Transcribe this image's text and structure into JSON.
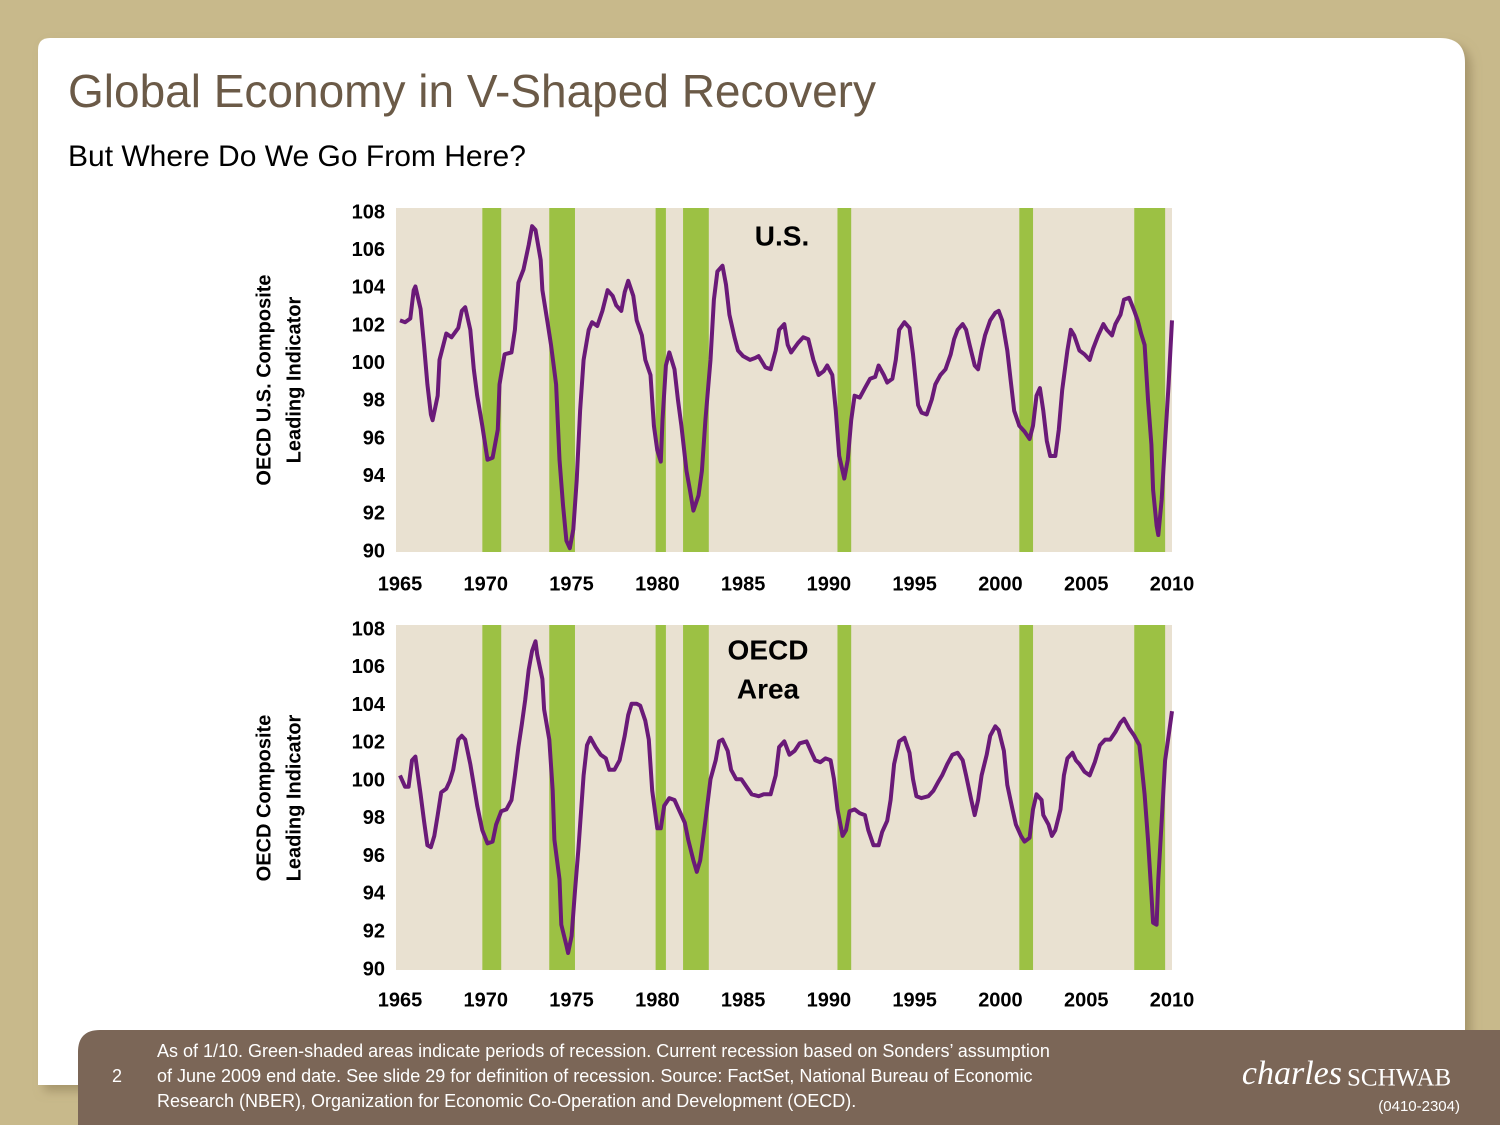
{
  "title": "Global Economy in V-Shaped Recovery",
  "subtitle": "But Where Do We Go From Here?",
  "chart_data": [
    {
      "type": "line",
      "annotation": [
        "U.S."
      ],
      "ylabel": [
        "OECD U.S. Composite",
        "Leading Indicator"
      ],
      "color": "#6a1a78",
      "recession_color": "#9cc144",
      "background": "#e9e1d1",
      "xlim": [
        1965,
        2010
      ],
      "xticks": [
        1965,
        1970,
        1975,
        1980,
        1985,
        1990,
        1995,
        2000,
        2005,
        2010
      ],
      "ylim": [
        90,
        108
      ],
      "yticks": [
        90,
        92,
        94,
        96,
        98,
        100,
        102,
        104,
        106,
        108
      ],
      "recessions": [
        [
          1969.8,
          1970.9
        ],
        [
          1973.7,
          1975.2
        ],
        [
          1979.9,
          1980.5
        ],
        [
          1981.5,
          1983.0
        ],
        [
          1990.5,
          1991.3
        ],
        [
          2001.1,
          2001.9
        ],
        [
          2007.8,
          2009.6
        ]
      ],
      "x": [
        1965.0,
        1965.3,
        1965.6,
        1965.8,
        1965.9,
        1966.2,
        1966.4,
        1966.6,
        1966.8,
        1966.9,
        1967.2,
        1967.3,
        1967.7,
        1968.0,
        1968.4,
        1968.6,
        1968.8,
        1969.1,
        1969.3,
        1969.5,
        1969.8,
        1970.1,
        1970.4,
        1970.7,
        1970.8,
        1971.1,
        1971.5,
        1971.7,
        1971.9,
        1972.2,
        1972.5,
        1972.7,
        1972.9,
        1973.2,
        1973.3,
        1973.6,
        1973.8,
        1974.1,
        1974.3,
        1974.5,
        1974.7,
        1974.9,
        1975.1,
        1975.3,
        1975.5,
        1975.7,
        1976.0,
        1976.2,
        1976.5,
        1976.8,
        1977.1,
        1977.4,
        1977.6,
        1977.9,
        1978.1,
        1978.3,
        1978.6,
        1978.8,
        1979.1,
        1979.3,
        1979.6,
        1979.8,
        1980.0,
        1980.2,
        1980.3,
        1980.5,
        1980.7,
        1981.0,
        1981.2,
        1981.4,
        1981.7,
        1981.9,
        1982.1,
        1982.4,
        1982.6,
        1982.8,
        1983.1,
        1983.3,
        1983.5,
        1983.8,
        1984.0,
        1984.2,
        1984.5,
        1984.7,
        1985.0,
        1985.4,
        1985.7,
        1985.9,
        1986.3,
        1986.6,
        1986.9,
        1987.1,
        1987.4,
        1987.6,
        1987.8,
        1988.2,
        1988.5,
        1988.8,
        1989.1,
        1989.4,
        1989.7,
        1989.9,
        1990.2,
        1990.4,
        1990.6,
        1990.9,
        1991.1,
        1991.3,
        1991.5,
        1991.8,
        1992.1,
        1992.4,
        1992.7,
        1992.9,
        1993.2,
        1993.4,
        1993.7,
        1993.9,
        1994.1,
        1994.4,
        1994.7,
        1994.9,
        1995.2,
        1995.4,
        1995.7,
        1996.0,
        1996.2,
        1996.5,
        1996.8,
        1997.1,
        1997.3,
        1997.5,
        1997.8,
        1998.0,
        1998.2,
        1998.5,
        1998.7,
        1998.9,
        1999.1,
        1999.4,
        1999.7,
        1999.9,
        2000.1,
        2000.4,
        2000.6,
        2000.8,
        2001.1,
        2001.4,
        2001.7,
        2001.9,
        2002.1,
        2002.3,
        2002.5,
        2002.7,
        2002.9,
        2003.2,
        2003.4,
        2003.6,
        2003.9,
        2004.1,
        2004.3,
        2004.6,
        2004.9,
        2005.2,
        2005.4,
        2005.7,
        2006.0,
        2006.2,
        2006.5,
        2006.7,
        2007.0,
        2007.2,
        2007.5,
        2007.8,
        2008.0,
        2008.2,
        2008.4,
        2008.6,
        2008.8,
        2008.9,
        2009.1,
        2009.2,
        2009.4,
        2009.6,
        2009.8,
        2010.0
      ],
      "values": [
        102.3,
        102.2,
        102.4,
        103.9,
        104.1,
        102.9,
        101.0,
        98.9,
        97.3,
        97.0,
        98.3,
        100.2,
        101.6,
        101.4,
        101.9,
        102.8,
        103.0,
        101.8,
        99.7,
        98.3,
        96.7,
        94.9,
        95.0,
        96.5,
        98.9,
        100.5,
        100.6,
        101.8,
        104.3,
        105.0,
        106.3,
        107.3,
        107.1,
        105.5,
        103.9,
        102.2,
        101.0,
        98.9,
        94.9,
        92.5,
        90.6,
        90.2,
        91.2,
        93.8,
        97.5,
        100.2,
        101.8,
        102.2,
        102.0,
        102.8,
        103.9,
        103.6,
        103.1,
        102.8,
        103.8,
        104.4,
        103.6,
        102.3,
        101.5,
        100.2,
        99.4,
        96.7,
        95.4,
        94.8,
        97.0,
        99.9,
        100.6,
        99.7,
        98.1,
        96.7,
        94.3,
        93.3,
        92.2,
        93.0,
        94.3,
        97.0,
        100.2,
        103.4,
        104.9,
        105.2,
        104.2,
        102.6,
        101.4,
        100.7,
        100.4,
        100.2,
        100.3,
        100.4,
        99.8,
        99.7,
        100.7,
        101.8,
        102.1,
        101.0,
        100.6,
        101.1,
        101.4,
        101.3,
        100.2,
        99.4,
        99.6,
        99.9,
        99.4,
        97.5,
        95.1,
        93.9,
        94.9,
        97.0,
        98.3,
        98.2,
        98.7,
        99.2,
        99.3,
        99.9,
        99.4,
        99.0,
        99.2,
        100.2,
        101.8,
        102.2,
        101.9,
        100.5,
        97.8,
        97.4,
        97.3,
        98.1,
        98.9,
        99.4,
        99.7,
        100.5,
        101.3,
        101.8,
        102.1,
        101.8,
        101.0,
        99.9,
        99.7,
        100.7,
        101.5,
        102.3,
        102.7,
        102.8,
        102.3,
        100.7,
        99.1,
        97.5,
        96.7,
        96.4,
        96.0,
        96.7,
        98.3,
        98.7,
        97.5,
        95.9,
        95.1,
        95.1,
        96.5,
        98.6,
        100.7,
        101.8,
        101.5,
        100.7,
        100.5,
        100.2,
        100.8,
        101.5,
        102.1,
        101.8,
        101.5,
        102.1,
        102.6,
        103.4,
        103.5,
        102.8,
        102.3,
        101.6,
        101.0,
        98.1,
        95.7,
        93.3,
        91.4,
        90.9,
        92.8,
        95.9,
        98.9,
        102.3
      ]
    },
    {
      "type": "line",
      "annotation": [
        "OECD",
        "Area"
      ],
      "ylabel": [
        "OECD Composite",
        "Leading Indicator"
      ],
      "color": "#6a1a78",
      "recession_color": "#9cc144",
      "background": "#e9e1d1",
      "xlim": [
        1965,
        2010
      ],
      "xticks": [
        1965,
        1970,
        1975,
        1980,
        1985,
        1990,
        1995,
        2000,
        2005,
        2010
      ],
      "ylim": [
        90,
        108
      ],
      "yticks": [
        90,
        92,
        94,
        96,
        98,
        100,
        102,
        104,
        106,
        108
      ],
      "recessions": [
        [
          1969.8,
          1970.9
        ],
        [
          1973.7,
          1975.2
        ],
        [
          1979.9,
          1980.5
        ],
        [
          1981.5,
          1983.0
        ],
        [
          1990.5,
          1991.3
        ],
        [
          2001.1,
          2001.9
        ],
        [
          2007.8,
          2009.6
        ]
      ],
      "x": [
        1965.0,
        1965.1,
        1965.3,
        1965.5,
        1965.7,
        1965.9,
        1966.0,
        1966.2,
        1966.4,
        1966.6,
        1966.8,
        1967.0,
        1967.2,
        1967.4,
        1967.7,
        1967.9,
        1968.1,
        1968.4,
        1968.6,
        1968.8,
        1969.1,
        1969.3,
        1969.5,
        1969.8,
        1970.1,
        1970.4,
        1970.6,
        1970.9,
        1971.2,
        1971.5,
        1971.7,
        1971.9,
        1972.1,
        1972.3,
        1972.5,
        1972.7,
        1972.9,
        1973.0,
        1973.3,
        1973.4,
        1973.7,
        1973.9,
        1974.0,
        1974.3,
        1974.4,
        1974.7,
        1974.8,
        1975.0,
        1975.2,
        1975.4,
        1975.7,
        1975.9,
        1976.1,
        1976.4,
        1976.7,
        1977.0,
        1977.2,
        1977.5,
        1977.8,
        1978.1,
        1978.3,
        1978.5,
        1978.8,
        1979.0,
        1979.3,
        1979.5,
        1979.7,
        1980.0,
        1980.2,
        1980.4,
        1980.7,
        1981.0,
        1981.3,
        1981.6,
        1981.8,
        1982.1,
        1982.3,
        1982.5,
        1982.8,
        1983.1,
        1983.4,
        1983.6,
        1983.8,
        1984.1,
        1984.3,
        1984.6,
        1984.9,
        1985.2,
        1985.5,
        1985.9,
        1986.2,
        1986.6,
        1986.9,
        1987.1,
        1987.4,
        1987.7,
        1988.0,
        1988.3,
        1988.7,
        1989.0,
        1989.2,
        1989.5,
        1989.8,
        1990.1,
        1990.3,
        1990.5,
        1990.8,
        1991.0,
        1991.2,
        1991.5,
        1991.8,
        1992.1,
        1992.3,
        1992.6,
        1992.9,
        1993.1,
        1993.4,
        1993.6,
        1993.8,
        1994.1,
        1994.4,
        1994.7,
        1994.9,
        1995.1,
        1995.4,
        1995.8,
        1996.1,
        1996.4,
        1996.6,
        1996.9,
        1997.2,
        1997.5,
        1997.8,
        1998.0,
        1998.3,
        1998.5,
        1998.7,
        1998.9,
        1999.2,
        1999.4,
        1999.7,
        1999.9,
        2000.2,
        2000.4,
        2000.7,
        2000.9,
        2001.2,
        2001.4,
        2001.7,
        2001.9,
        2002.1,
        2002.4,
        2002.5,
        2002.8,
        2003.0,
        2003.2,
        2003.5,
        2003.7,
        2003.9,
        2004.2,
        2004.4,
        2004.6,
        2004.9,
        2005.2,
        2005.5,
        2005.8,
        2006.1,
        2006.4,
        2006.7,
        2007.0,
        2007.2,
        2007.5,
        2007.8,
        2008.1,
        2008.2,
        2008.4,
        2008.6,
        2008.8,
        2008.9,
        2009.1,
        2009.2,
        2009.4,
        2009.6,
        2009.8,
        2010.0
      ],
      "values": [
        100.3,
        100.1,
        99.7,
        99.7,
        101.1,
        101.3,
        100.6,
        99.3,
        97.9,
        96.6,
        96.5,
        97.1,
        98.2,
        99.4,
        99.6,
        100.0,
        100.6,
        102.2,
        102.4,
        102.2,
        100.9,
        99.8,
        98.7,
        97.4,
        96.7,
        96.8,
        97.7,
        98.4,
        98.5,
        99.0,
        100.3,
        101.8,
        103.0,
        104.3,
        105.9,
        106.9,
        107.4,
        106.7,
        105.4,
        103.8,
        102.2,
        99.5,
        96.9,
        94.8,
        92.4,
        91.3,
        90.9,
        91.8,
        94.2,
        96.4,
        100.3,
        101.9,
        102.3,
        101.8,
        101.4,
        101.2,
        100.6,
        100.6,
        101.1,
        102.4,
        103.5,
        104.1,
        104.1,
        104.0,
        103.2,
        102.2,
        99.5,
        97.5,
        97.5,
        98.7,
        99.1,
        99.0,
        98.4,
        97.8,
        96.9,
        95.8,
        95.2,
        95.8,
        97.9,
        100.1,
        101.1,
        102.1,
        102.2,
        101.6,
        100.6,
        100.1,
        100.1,
        99.7,
        99.3,
        99.2,
        99.3,
        99.3,
        100.3,
        101.8,
        102.1,
        101.4,
        101.6,
        102.0,
        102.1,
        101.5,
        101.1,
        101.0,
        101.2,
        101.1,
        100.1,
        98.5,
        97.1,
        97.4,
        98.4,
        98.5,
        98.3,
        98.2,
        97.4,
        96.6,
        96.6,
        97.3,
        97.9,
        99.0,
        100.9,
        102.1,
        102.3,
        101.5,
        100.1,
        99.2,
        99.1,
        99.2,
        99.5,
        100.0,
        100.3,
        100.9,
        101.4,
        101.5,
        101.1,
        100.3,
        99.0,
        98.2,
        99.0,
        100.3,
        101.4,
        102.4,
        102.9,
        102.7,
        101.6,
        99.8,
        98.5,
        97.7,
        97.1,
        96.8,
        97.0,
        98.5,
        99.3,
        99.0,
        98.2,
        97.7,
        97.1,
        97.4,
        98.5,
        100.3,
        101.2,
        101.5,
        101.1,
        100.9,
        100.5,
        100.3,
        101.0,
        101.9,
        102.2,
        102.2,
        102.6,
        103.1,
        103.3,
        102.8,
        102.4,
        101.9,
        101.1,
        99.3,
        96.9,
        94.0,
        92.5,
        92.4,
        94.8,
        97.9,
        101.1,
        102.4,
        103.7
      ]
    }
  ],
  "footer": {
    "page": "2",
    "note": [
      "As of 1/10. Green-shaded areas indicate periods of recession. Current recession based on Sonders’ assumption",
      "of June 2009 end date.  See slide 29 for definition of recession. Source: FactSet, National Bureau of Economic",
      "Research (NBER), Organization for Economic Co-Operation and Development (OECD)."
    ],
    "logo": [
      "charles",
      "SCHWAB"
    ],
    "code": "(0410-2304)"
  }
}
